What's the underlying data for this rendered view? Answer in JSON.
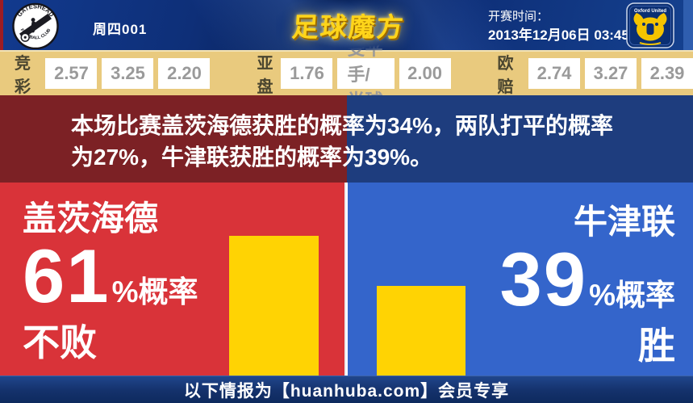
{
  "header": {
    "match_code": "周四001",
    "brand_logo_text": "足球魔方",
    "kickoff_label": "开赛时间：",
    "kickoff_datetime": "2013年12月06日 03:45",
    "home_badge": {
      "team": "Gateshead Football Club",
      "arc_top": "GATESHEAD",
      "arc_bottom": "FOOTBALL CLUB"
    },
    "away_badge": {
      "team": "Oxford United",
      "label": "Oxford United"
    }
  },
  "odds_bar": {
    "sporttery": {
      "label": "竞彩",
      "win": "2.57",
      "draw": "3.25",
      "lose": "2.20"
    },
    "asian_handicap": {
      "label": "亚盘",
      "home_odds": "1.76",
      "handicap": "受平手/半球",
      "away_odds": "2.00"
    },
    "european_odds": {
      "label": "欧赔",
      "win": "2.74",
      "draw": "3.27",
      "lose": "2.39"
    }
  },
  "summary_banner": {
    "text": "本场比赛盖茨海德获胜的概率为34%，两队打平的概率为27%，牛津联获胜的概率为39%。"
  },
  "probability_panels": {
    "home": {
      "team": "盖茨海德",
      "percent": "61",
      "percent_suffix": "%概率",
      "outcome": "不败"
    },
    "away": {
      "team": "牛津联",
      "percent": "39",
      "percent_suffix": "%概率",
      "outcome": "胜"
    }
  },
  "chart_data": {
    "type": "bar",
    "categories": [
      "盖茨海德不败",
      "牛津联胜"
    ],
    "values": [
      61,
      39
    ],
    "unit": "%",
    "bar_color": "#ffd303",
    "ylim": [
      0,
      84
    ],
    "pixels_per_percent": 2.835
  },
  "footer": {
    "text": "以下情报为【huanhuba.com】会员专享"
  },
  "colors": {
    "header_navy": "#0e2f78",
    "odds_bar_tan": "#e9ca7e",
    "banner_red": "#7c2125",
    "banner_blue": "#1e3d7e",
    "panel_red": "#d93339",
    "panel_blue": "#3465cb",
    "bar_yellow": "#ffd303",
    "footer_navy": "#14316b",
    "brand_gold": "#ffd51a"
  }
}
